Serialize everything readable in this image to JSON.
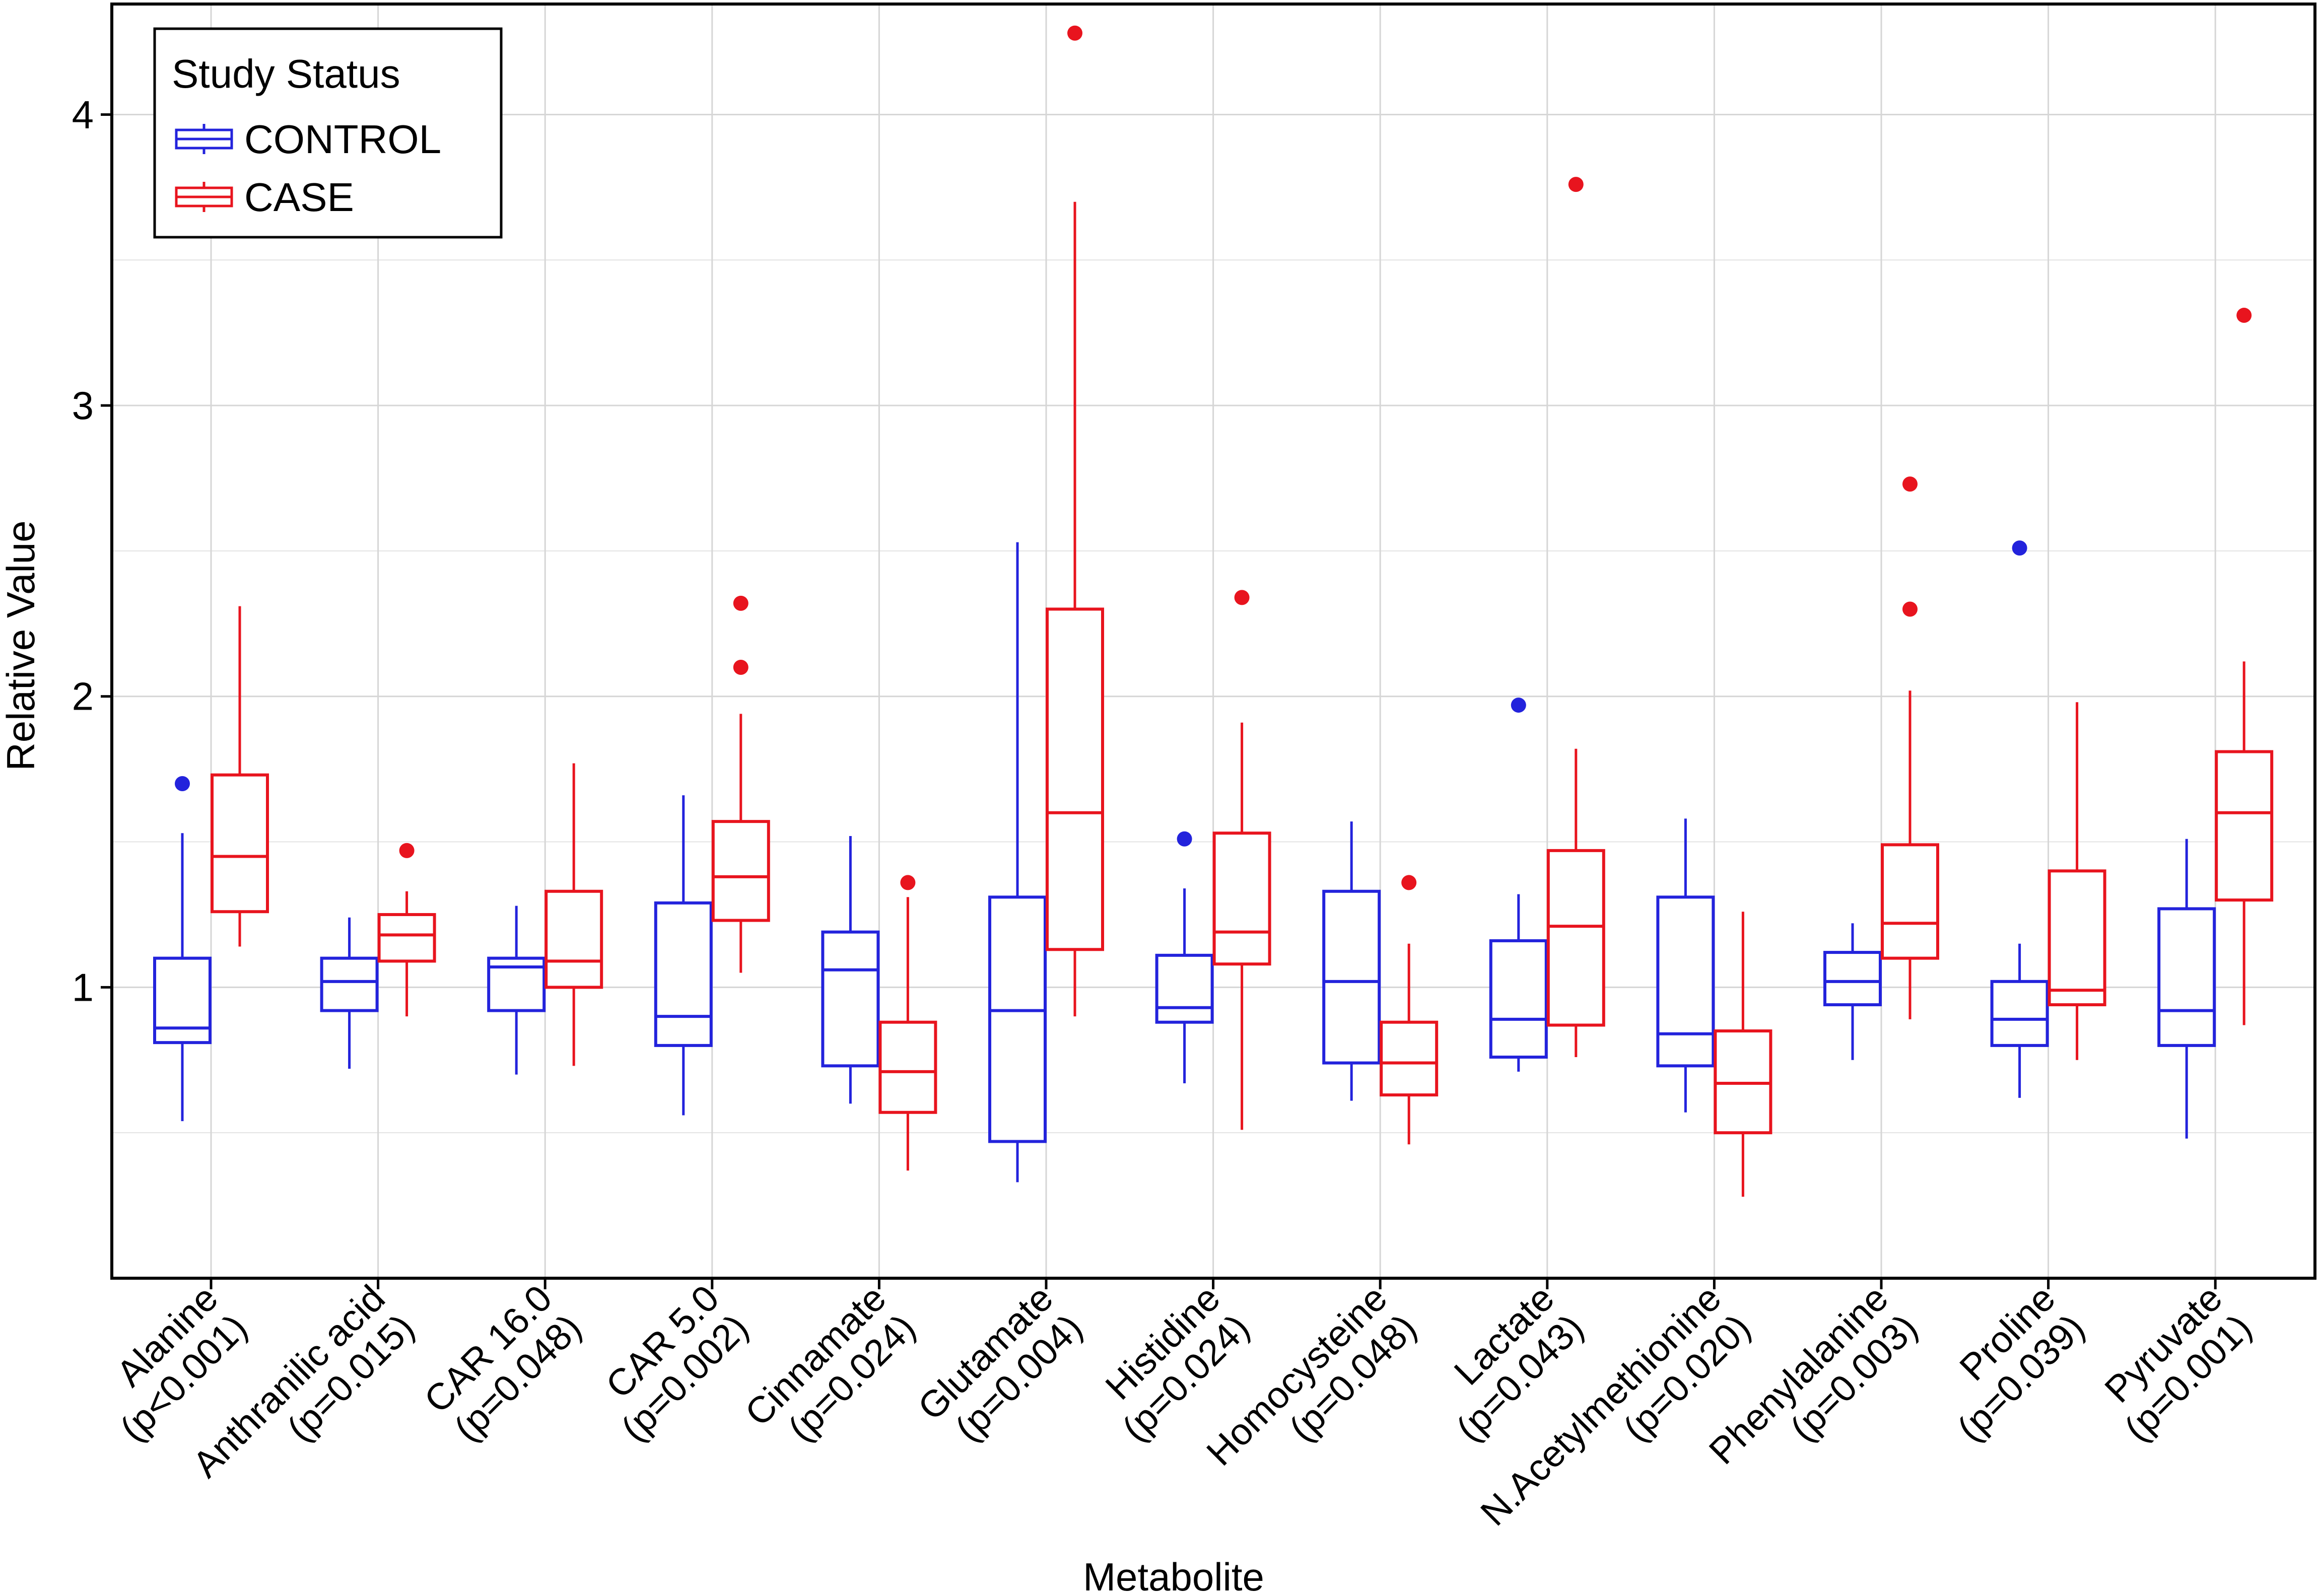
{
  "chart_data": {
    "type": "boxplot",
    "title": "",
    "xlabel": "Metabolite",
    "ylabel": "Relative Value",
    "ylim": [
      0.0,
      4.38
    ],
    "yticks": [
      1,
      2,
      3,
      4
    ],
    "grid": true,
    "legend": {
      "title": "Study Status",
      "position": "top-left",
      "entries": [
        {
          "name": "CONTROL",
          "color": "#2323dc"
        },
        {
          "name": "CASE",
          "color": "#e8141e"
        }
      ]
    },
    "categories": [
      {
        "name": "Alanine",
        "pvalue": "(p<0.001)"
      },
      {
        "name": "Anthranilic acid",
        "pvalue": "(p=0.015)"
      },
      {
        "name": "CAR 16.0",
        "pvalue": "(p=0.048)"
      },
      {
        "name": "CAR 5.0",
        "pvalue": "(p=0.002)"
      },
      {
        "name": "Cinnamate",
        "pvalue": "(p=0.024)"
      },
      {
        "name": "Glutamate",
        "pvalue": "(p=0.004)"
      },
      {
        "name": "Histidine",
        "pvalue": "(p=0.024)"
      },
      {
        "name": "Homocysteine",
        "pvalue": "(p=0.048)"
      },
      {
        "name": "Lactate",
        "pvalue": "(p=0.043)"
      },
      {
        "name": "N.Acetylmethionine",
        "pvalue": "(p=0.020)"
      },
      {
        "name": "Phenylalanine",
        "pvalue": "(p=0.003)"
      },
      {
        "name": "Proline",
        "pvalue": "(p=0.039)"
      },
      {
        "name": "Pyruvate",
        "pvalue": "(p=0.001)"
      }
    ],
    "series": [
      {
        "name": "CONTROL",
        "color": "#2323dc",
        "boxes": [
          {
            "min": 0.54,
            "q1": 0.81,
            "median": 0.86,
            "q3": 1.1,
            "max": 1.53,
            "outliers": [
              1.7
            ]
          },
          {
            "min": 0.72,
            "q1": 0.92,
            "median": 1.02,
            "q3": 1.1,
            "max": 1.24,
            "outliers": []
          },
          {
            "min": 0.7,
            "q1": 0.92,
            "median": 1.07,
            "q3": 1.1,
            "max": 1.28,
            "outliers": []
          },
          {
            "min": 0.56,
            "q1": 0.8,
            "median": 0.9,
            "q3": 1.29,
            "max": 1.66,
            "outliers": []
          },
          {
            "min": 0.6,
            "q1": 0.73,
            "median": 1.06,
            "q3": 1.19,
            "max": 1.52,
            "outliers": []
          },
          {
            "min": 0.33,
            "q1": 0.47,
            "median": 0.92,
            "q3": 1.31,
            "max": 2.53,
            "outliers": []
          },
          {
            "min": 0.67,
            "q1": 0.88,
            "median": 0.93,
            "q3": 1.11,
            "max": 1.34,
            "outliers": [
              1.51
            ]
          },
          {
            "min": 0.61,
            "q1": 0.74,
            "median": 1.02,
            "q3": 1.33,
            "max": 1.57,
            "outliers": []
          },
          {
            "min": 0.71,
            "q1": 0.76,
            "median": 0.89,
            "q3": 1.16,
            "max": 1.32,
            "outliers": [
              1.97
            ]
          },
          {
            "min": 0.57,
            "q1": 0.73,
            "median": 0.84,
            "q3": 1.31,
            "max": 1.58,
            "outliers": []
          },
          {
            "min": 0.75,
            "q1": 0.94,
            "median": 1.02,
            "q3": 1.12,
            "max": 1.22,
            "outliers": []
          },
          {
            "min": 0.62,
            "q1": 0.8,
            "median": 0.89,
            "q3": 1.02,
            "max": 1.15,
            "outliers": [
              2.51
            ]
          },
          {
            "min": 0.48,
            "q1": 0.8,
            "median": 0.92,
            "q3": 1.27,
            "max": 1.51,
            "outliers": []
          }
        ]
      },
      {
        "name": "CASE",
        "color": "#e8141e",
        "boxes": [
          {
            "min": 1.14,
            "q1": 1.26,
            "median": 1.45,
            "q3": 1.73,
            "max": 2.31,
            "outliers": []
          },
          {
            "min": 0.9,
            "q1": 1.09,
            "median": 1.18,
            "q3": 1.25,
            "max": 1.33,
            "outliers": [
              1.47
            ]
          },
          {
            "min": 0.73,
            "q1": 1.0,
            "median": 1.09,
            "q3": 1.33,
            "max": 1.77,
            "outliers": []
          },
          {
            "min": 1.05,
            "q1": 1.23,
            "median": 1.38,
            "q3": 1.57,
            "max": 1.94,
            "outliers": [
              2.1,
              2.32
            ]
          },
          {
            "min": 0.37,
            "q1": 0.57,
            "median": 0.71,
            "q3": 0.88,
            "max": 1.31,
            "outliers": [
              1.36
            ]
          },
          {
            "min": 0.9,
            "q1": 1.13,
            "median": 1.6,
            "q3": 2.3,
            "max": 3.7,
            "outliers": [
              4.28
            ]
          },
          {
            "min": 0.51,
            "q1": 1.08,
            "median": 1.19,
            "q3": 1.53,
            "max": 1.91,
            "outliers": [
              2.34
            ]
          },
          {
            "min": 0.46,
            "q1": 0.63,
            "median": 0.74,
            "q3": 0.88,
            "max": 1.15,
            "outliers": [
              1.36
            ]
          },
          {
            "min": 0.76,
            "q1": 0.87,
            "median": 1.21,
            "q3": 1.47,
            "max": 1.82,
            "outliers": [
              3.76
            ]
          },
          {
            "min": 0.28,
            "q1": 0.5,
            "median": 0.67,
            "q3": 0.85,
            "max": 1.26,
            "outliers": []
          },
          {
            "min": 0.89,
            "q1": 1.1,
            "median": 1.22,
            "q3": 1.49,
            "max": 2.02,
            "outliers": [
              2.3,
              2.73
            ]
          },
          {
            "min": 0.75,
            "q1": 0.94,
            "median": 0.99,
            "q3": 1.4,
            "max": 1.98,
            "outliers": []
          },
          {
            "min": 0.87,
            "q1": 1.3,
            "median": 1.6,
            "q3": 1.81,
            "max": 2.12,
            "outliers": [
              3.31
            ]
          }
        ]
      }
    ]
  }
}
